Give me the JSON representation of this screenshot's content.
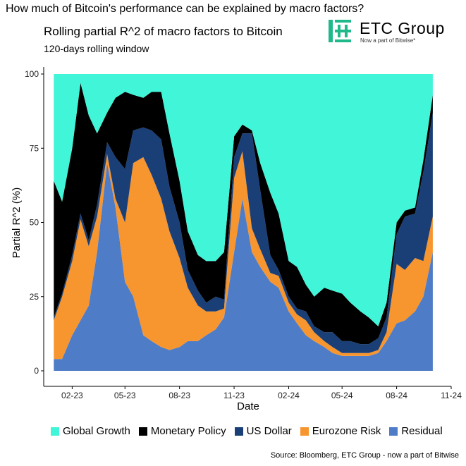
{
  "header": {
    "question": "How much of Bitcoin's performance can be explained by macro factors?"
  },
  "logo": {
    "name": "ETC Group",
    "tagline": "Now a part of Bitwise*",
    "color": "#1fb98a"
  },
  "source": "Source: Bloomberg, ETC Group - now a part of Bitwise",
  "chart_data": {
    "type": "area",
    "stacked": true,
    "title": "Rolling partial R^2 of macro factors to Bitcoin",
    "subtitle": "120-days rolling window",
    "xlabel": "Date",
    "ylabel": "Partial R^2 (%)",
    "ylim": [
      0,
      100
    ],
    "yticks": [
      0,
      25,
      50,
      75,
      100
    ],
    "xlim": [
      "2022-12-15",
      "2024-11-01"
    ],
    "xticks": [
      "2023-02-01",
      "2023-05-01",
      "2023-08-01",
      "2023-11-01",
      "2024-02-01",
      "2024-05-01",
      "2024-08-01",
      "2024-11-01"
    ],
    "xtick_labels": [
      "02-23",
      "05-23",
      "08-23",
      "11-23",
      "02-24",
      "05-24",
      "08-24",
      "11-24"
    ],
    "grid": false,
    "legend_position": "bottom",
    "x": [
      "2023-01-01",
      "2023-01-15",
      "2023-02-01",
      "2023-02-15",
      "2023-03-01",
      "2023-03-15",
      "2023-04-01",
      "2023-04-15",
      "2023-05-01",
      "2023-05-15",
      "2023-06-01",
      "2023-06-15",
      "2023-07-01",
      "2023-07-15",
      "2023-08-01",
      "2023-08-15",
      "2023-09-01",
      "2023-09-15",
      "2023-10-01",
      "2023-10-15",
      "2023-11-01",
      "2023-11-15",
      "2023-12-01",
      "2023-12-15",
      "2024-01-01",
      "2024-01-15",
      "2024-02-01",
      "2024-02-15",
      "2024-03-01",
      "2024-03-15",
      "2024-04-01",
      "2024-04-15",
      "2024-05-01",
      "2024-05-15",
      "2024-06-01",
      "2024-06-15",
      "2024-07-01",
      "2024-07-15",
      "2024-08-01",
      "2024-08-15",
      "2024-09-01",
      "2024-09-15",
      "2024-10-01"
    ],
    "series": [
      {
        "name": "Residual",
        "color": "#4f7cc7",
        "values": [
          4,
          4,
          12,
          17,
          22,
          40,
          70,
          55,
          30,
          25,
          12,
          10,
          8,
          7,
          8,
          10,
          10,
          12,
          14,
          18,
          40,
          58,
          40,
          35,
          30,
          28,
          20,
          16,
          12,
          10,
          8,
          6,
          5,
          5,
          5,
          5,
          6,
          10,
          16,
          17,
          20,
          25,
          40
        ]
      },
      {
        "name": "Eurozone Risk",
        "color": "#f7952f",
        "values": [
          13,
          21,
          25,
          34,
          20,
          12,
          3,
          3,
          20,
          45,
          60,
          56,
          50,
          40,
          30,
          18,
          12,
          8,
          6,
          3,
          25,
          16,
          8,
          6,
          3,
          4,
          3,
          3,
          5,
          3,
          2,
          2,
          1,
          1,
          1,
          1,
          1,
          3,
          20,
          17,
          18,
          12,
          12
        ]
      },
      {
        "name": "US Dollar",
        "color": "#1a3f77",
        "values": [
          1,
          1,
          2,
          2,
          2,
          4,
          4,
          14,
          18,
          11,
          10,
          15,
          20,
          15,
          12,
          6,
          5,
          3,
          5,
          3,
          7,
          6,
          32,
          20,
          6,
          2,
          2,
          2,
          3,
          2,
          3,
          5,
          4,
          4,
          3,
          3,
          4,
          5,
          10,
          18,
          15,
          30,
          35
        ]
      },
      {
        "name": "Monetary Policy",
        "color": "#000000",
        "values": [
          46,
          31,
          36,
          44,
          42,
          24,
          10,
          20,
          26,
          12,
          10,
          13,
          16,
          18,
          14,
          13,
          12,
          14,
          12,
          16,
          7,
          3,
          1,
          9,
          21,
          19,
          12,
          14,
          9,
          10,
          15,
          14,
          16,
          13,
          11,
          9,
          4,
          5,
          4,
          2,
          2,
          4,
          6
        ]
      },
      {
        "name": "Global Growth",
        "color": "#41f5d8",
        "values": [
          36,
          43,
          25,
          3,
          14,
          20,
          13,
          8,
          6,
          7,
          8,
          6,
          6,
          20,
          36,
          53,
          61,
          63,
          63,
          60,
          21,
          17,
          19,
          30,
          40,
          47,
          63,
          65,
          71,
          75,
          72,
          73,
          74,
          77,
          80,
          82,
          85,
          77,
          50,
          46,
          45,
          29,
          7
        ]
      }
    ],
    "legend_order": [
      "Global Growth",
      "Monetary Policy",
      "US Dollar",
      "Eurozone Risk",
      "Residual"
    ]
  }
}
